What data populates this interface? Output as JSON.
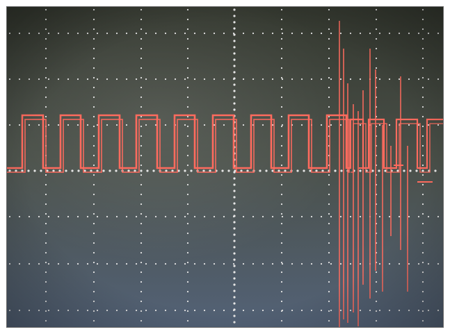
{
  "scene": {
    "subject": "oscilloscope-screen-photo",
    "colors": {
      "screen_top": "#34382f",
      "screen_mid": "#4a5049",
      "screen_bottom": "#536277",
      "grid_dots": "#e6e6e6",
      "trace": "#ff6b5e",
      "frame": "#6a6a6a"
    },
    "graticule": {
      "horizontal_divisions": 10,
      "vertical_divisions": 8
    },
    "trace": {
      "signal": "square-wave-then-spiky-burst",
      "square_wave_cycles": 9,
      "burst_spikes": 12
    }
  }
}
